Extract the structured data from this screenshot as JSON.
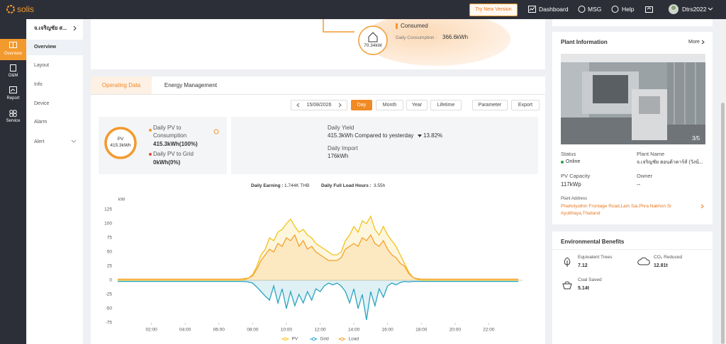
{
  "header": {
    "logo": "solis",
    "try_new_version": "Try New Version",
    "nav": [
      "Dashboard",
      "MSG",
      "Help"
    ],
    "user": "Dtrs2022"
  },
  "sidebar": [
    "Overview",
    "O&M",
    "Report",
    "Service"
  ],
  "plant_nav": {
    "title": "จ.เจริญชัย ส...",
    "items": [
      "Overview",
      "Layout",
      "Info",
      "Device",
      "Alarm",
      "Alert"
    ]
  },
  "flow": {
    "power": "70.34kW",
    "label": "Consumed",
    "daily_consumption_label": "Daily Consumption :",
    "daily_consumption": "366.6kWh"
  },
  "tabs": [
    "Operating Data",
    "Energy Management"
  ],
  "date": "15/08/2026",
  "periods": [
    "Day",
    "Month",
    "Year",
    "Lifetime"
  ],
  "actions": [
    "Parameter",
    "Export"
  ],
  "pv_summary": {
    "ring_label": "PV",
    "ring_value": "415.3kWh",
    "to_consumption_label": "Daily PV to Consumption",
    "to_consumption": "415.3kWh(100%)",
    "to_grid_label": "Daily PV to Grid",
    "to_grid": "0kWh(0%)"
  },
  "yield_summary": {
    "yield_label": "Daily Yield",
    "yield": "415.3kWh Compared to yesterday",
    "change": "13.82%",
    "import_label": "Daily Import",
    "import": "176kWh"
  },
  "earnings": {
    "earning_label": "Daily Earning :",
    "earning": "1.744K THB",
    "hours_label": "Daily Full Load Hours :",
    "hours": "3.55h"
  },
  "chart_data": {
    "type": "line",
    "ylabel": "kW",
    "x": [
      0,
      1,
      2,
      3,
      4,
      5,
      6,
      7,
      7.25,
      7.5,
      7.75,
      8,
      8.25,
      8.5,
      8.75,
      9,
      9.25,
      9.5,
      9.75,
      10,
      10.25,
      10.5,
      10.75,
      11,
      11.25,
      11.5,
      11.75,
      12,
      12.25,
      12.5,
      12.75,
      13,
      13.25,
      13.5,
      13.75,
      14,
      14.25,
      14.5,
      14.75,
      15,
      15.25,
      15.5,
      15.75,
      16,
      16.25,
      16.5,
      16.75,
      17,
      17.25,
      17.5,
      17.75,
      18,
      19,
      20,
      21,
      22,
      23,
      23.75
    ],
    "xlim": [
      0,
      24
    ],
    "xticks": [
      {
        "value": 2,
        "label": "02:00"
      },
      {
        "value": 4,
        "label": "04:00"
      },
      {
        "value": 6,
        "label": "06:00"
      },
      {
        "value": 8,
        "label": "08:00"
      },
      {
        "value": 10,
        "label": "10:00"
      },
      {
        "value": 12,
        "label": "12:00"
      },
      {
        "value": 14,
        "label": "14:00"
      },
      {
        "value": 16,
        "label": "16:00"
      },
      {
        "value": 18,
        "label": "18:00"
      },
      {
        "value": 20,
        "label": "20:00"
      },
      {
        "value": 22,
        "label": "22:00"
      }
    ],
    "ylim": [
      -75,
      125
    ],
    "yticks": [
      -75,
      -50,
      -25,
      0,
      25,
      50,
      75,
      100,
      125
    ],
    "grid": false,
    "legend": "bottom",
    "series": [
      {
        "name": "PV",
        "color": "#f2c21b",
        "values": [
          0,
          0,
          0,
          0,
          0,
          0,
          0,
          0,
          0,
          1,
          4,
          10,
          25,
          45,
          55,
          75,
          70,
          85,
          90,
          100,
          108,
          95,
          85,
          90,
          80,
          75,
          65,
          60,
          55,
          50,
          45,
          45,
          50,
          70,
          80,
          95,
          85,
          105,
          100,
          113,
          90,
          80,
          95,
          80,
          70,
          60,
          45,
          30,
          15,
          5,
          2,
          0,
          0,
          0,
          0,
          0,
          0,
          0
        ]
      },
      {
        "name": "Grid",
        "color": "#2aa3bf",
        "values": [
          -2,
          -2,
          -2,
          -2,
          -2,
          -2,
          -2,
          -2,
          -2,
          -2,
          -3,
          -5,
          -12,
          -20,
          -28,
          -35,
          -10,
          -40,
          -15,
          -50,
          -20,
          -45,
          -25,
          -40,
          -20,
          -35,
          -15,
          -20,
          -10,
          -5,
          -8,
          -5,
          -10,
          -20,
          -40,
          -15,
          -50,
          -25,
          -70,
          -20,
          -45,
          -15,
          -30,
          -10,
          -5,
          -8,
          -4,
          -2,
          -3,
          -2,
          -2,
          -2,
          -2,
          -2,
          -2,
          -2,
          -2,
          -2
        ]
      },
      {
        "name": "Load",
        "color": "#f5a02a",
        "values": [
          2,
          2,
          2,
          2,
          2,
          2,
          2,
          2,
          2,
          3,
          4,
          8,
          20,
          35,
          45,
          55,
          50,
          65,
          60,
          75,
          70,
          80,
          60,
          70,
          55,
          60,
          50,
          45,
          40,
          35,
          35,
          35,
          40,
          55,
          60,
          65,
          60,
          75,
          70,
          80,
          65,
          60,
          70,
          55,
          45,
          40,
          30,
          25,
          12,
          5,
          3,
          2,
          2,
          2,
          2,
          2,
          2,
          2
        ]
      }
    ]
  },
  "plant_info": {
    "title": "Plant Information",
    "more": "More",
    "photo_counter": "3/5",
    "status_label": "Status",
    "status": "Online",
    "name_label": "Plant Name",
    "name": "จ.เจริญชัย ฮอนด้าคาร์ส์ (วังน้...",
    "capacity_label": "PV Capacity",
    "capacity": "117kWp",
    "owner_label": "Owner",
    "owner": "--",
    "address_label": "Plant Address",
    "address": "Phaholyothin Frontage Road,Lam Sai,Phra Nakhon Si Ayutthaya,Thailand"
  },
  "environment": {
    "title": "Environmental Benefits",
    "items": [
      {
        "label": "Equivalent Trees",
        "value": "7.12"
      },
      {
        "label": "CO₂ Reduced",
        "value": "12.81t"
      },
      {
        "label": "Coal Saved",
        "value": "5.14t"
      }
    ]
  }
}
